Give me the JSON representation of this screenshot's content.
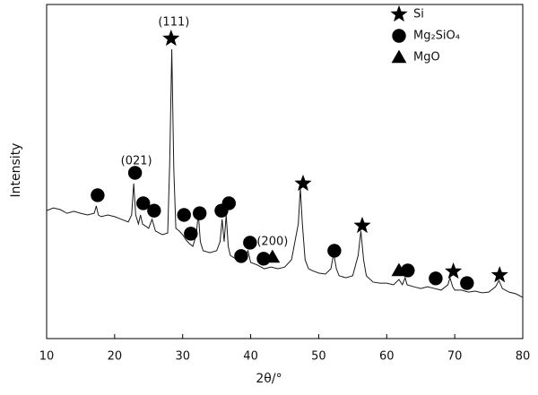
{
  "chart_data": {
    "type": "line",
    "xlabel": "2θ/°",
    "ylabel": "Intensity",
    "color": "#1a1a1a",
    "xlim": [
      10,
      80
    ],
    "ylim": [
      0,
      100
    ],
    "xticks": [
      10,
      20,
      30,
      40,
      50,
      60,
      70,
      80
    ],
    "x": [
      10,
      11,
      12,
      13,
      14,
      15,
      16,
      17,
      17.3,
      17.6,
      18,
      19,
      20,
      21,
      22,
      22.5,
      22.8,
      23.1,
      23.5,
      23.8,
      24.1,
      25,
      25.5,
      26,
      27,
      27.8,
      28.1,
      28.4,
      28.7,
      29,
      29.5,
      30,
      30.5,
      31,
      31.5,
      32,
      32.3,
      32.6,
      33,
      34,
      35,
      35.5,
      35.8,
      36.1,
      36.4,
      36.7,
      37,
      38,
      39,
      39.6,
      40,
      41,
      42,
      43,
      44,
      45,
      46,
      47,
      47.3,
      47.6,
      48,
      48.5,
      49,
      50,
      51,
      51.8,
      52.2,
      52.6,
      53,
      54,
      55,
      55.8,
      56.2,
      56.6,
      57,
      58,
      59,
      60,
      61,
      61.8,
      62.3,
      62.7,
      63,
      64,
      65,
      66,
      67,
      68,
      69,
      69.3,
      69.7,
      70,
      71,
      72,
      73,
      74,
      75,
      76,
      76.5,
      77,
      78,
      79,
      80
    ],
    "values": [
      38.3,
      39.1,
      38.6,
      37.5,
      38.1,
      37.5,
      37,
      37.5,
      39.7,
      37,
      36.5,
      37,
      36.5,
      35.7,
      34.9,
      37,
      46.4,
      37,
      34.3,
      37,
      34.3,
      33,
      35.7,
      32.2,
      31.1,
      31.6,
      53,
      86.6,
      50.4,
      33,
      32.2,
      31.1,
      29.5,
      28.4,
      27.6,
      31.1,
      37.5,
      29,
      26.3,
      25.7,
      26.3,
      29,
      35.7,
      29,
      37,
      27.6,
      24.9,
      23.6,
      23.1,
      26.3,
      22.8,
      22,
      20.9,
      21.4,
      20.9,
      21.4,
      23.6,
      34.3,
      45,
      34.3,
      23.6,
      20.9,
      20.4,
      19.6,
      19.3,
      20.9,
      25.5,
      20.9,
      18.8,
      18.2,
      18.8,
      24.9,
      32.2,
      23.6,
      18.8,
      16.9,
      16.6,
      16.6,
      16.1,
      17.7,
      16.1,
      18.2,
      16.1,
      15.5,
      15,
      15.5,
      15,
      14.5,
      16.1,
      18.2,
      15.5,
      14.5,
      14.5,
      13.9,
      14.2,
      13.7,
      13.9,
      15.5,
      17.4,
      15,
      13.9,
      13.4,
      12.3
    ],
    "legend": "upper right",
    "phases": [
      {
        "name": "Si",
        "marker": "star",
        "x": [
          28.3,
          47.7,
          56.4,
          69.8,
          76.6
        ],
        "y": [
          89.8,
          46.4,
          33.8,
          20.1,
          19
        ]
      },
      {
        "name": "Mg₂SiO₄",
        "marker": "circle",
        "x": [
          17.5,
          23,
          24.2,
          25.8,
          30.2,
          31.2,
          32.5,
          35.7,
          36.8,
          38.6,
          39.9,
          41.9,
          52.3,
          63.1,
          67.2,
          71.8
        ],
        "y": [
          42.9,
          49.6,
          40.5,
          38.3,
          37,
          31.4,
          37.5,
          38.3,
          40.5,
          24.7,
          28.7,
          23.9,
          26.3,
          20.4,
          18,
          16.6
        ]
      },
      {
        "name": "MgO",
        "marker": "triangle",
        "x": [
          43.2,
          61.8
        ],
        "y": [
          24.4,
          20.4
        ]
      }
    ],
    "annotations": [
      {
        "text": "(111)",
        "x": 28.7,
        "y": 94.6
      },
      {
        "text": "(021)",
        "x": 23.2,
        "y": 53.1
      },
      {
        "text": "(200)",
        "x": 43.2,
        "y": 29
      }
    ]
  }
}
